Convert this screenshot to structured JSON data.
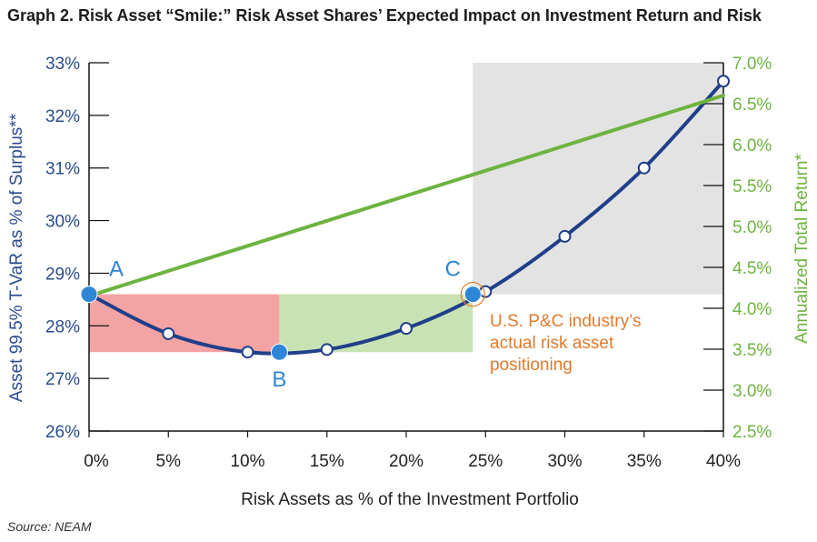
{
  "chart_data": {
    "type": "line",
    "title": "Graph 2. Risk Asset “Smile:” Risk Asset Shares’ Expected Impact on Investment Return and Risk",
    "xlabel": "Risk Assets as % of the Investment Portfolio",
    "ylabel_left": "Asset 99.5% T-VaR as % of Surplus**",
    "ylabel_right": "Annualized Total Return*",
    "x_ticks": [
      "0%",
      "5%",
      "10%",
      "15%",
      "20%",
      "25%",
      "30%",
      "35%",
      "40%"
    ],
    "xlim": [
      0,
      40
    ],
    "y_left_ticks": [
      "26%",
      "27%",
      "28%",
      "29%",
      "30%",
      "31%",
      "32%",
      "33%"
    ],
    "ylim_left": [
      26,
      33
    ],
    "y_right_ticks": [
      "2.5%",
      "3.0%",
      "3.5%",
      "4.0%",
      "4.5%",
      "5.0%",
      "5.5%",
      "6.0%",
      "6.5%",
      "7.0%"
    ],
    "ylim_right": [
      2.5,
      7.0
    ],
    "series": [
      {
        "axis": "left",
        "color": "#1f3f8a",
        "x": [
          0,
          5,
          10,
          15,
          20,
          25,
          30,
          35,
          40
        ],
        "values": [
          28.6,
          27.85,
          27.5,
          27.55,
          27.95,
          28.65,
          29.7,
          31.0,
          32.65
        ]
      },
      {
        "axis": "right",
        "color": "#6db33f",
        "x": [
          0,
          40
        ],
        "values": [
          4.15,
          6.6
        ]
      }
    ],
    "highlight_points": [
      {
        "label": "A",
        "x": 0,
        "y": 28.6
      },
      {
        "label": "B",
        "x": 12,
        "y": 27.5
      },
      {
        "label": "C",
        "x": 24.2,
        "y": 28.6
      }
    ],
    "regions": [
      {
        "color": "#f4a3a3",
        "x0": 0,
        "x1": 12,
        "y0": 27.5,
        "y1": 28.6
      },
      {
        "color": "#c8e3b3",
        "x0": 12,
        "x1": 24.2,
        "y0": 27.5,
        "y1": 28.6
      },
      {
        "color": "#e3e3e3",
        "x0": 24.2,
        "x1": 40,
        "y0": 28.6,
        "y1": 33
      }
    ],
    "annotation": {
      "lines": [
        "U.S. P&C industry’s",
        "actual risk asset",
        "positioning"
      ],
      "color": "#e07a2e"
    }
  },
  "source": "Source: NEAM"
}
